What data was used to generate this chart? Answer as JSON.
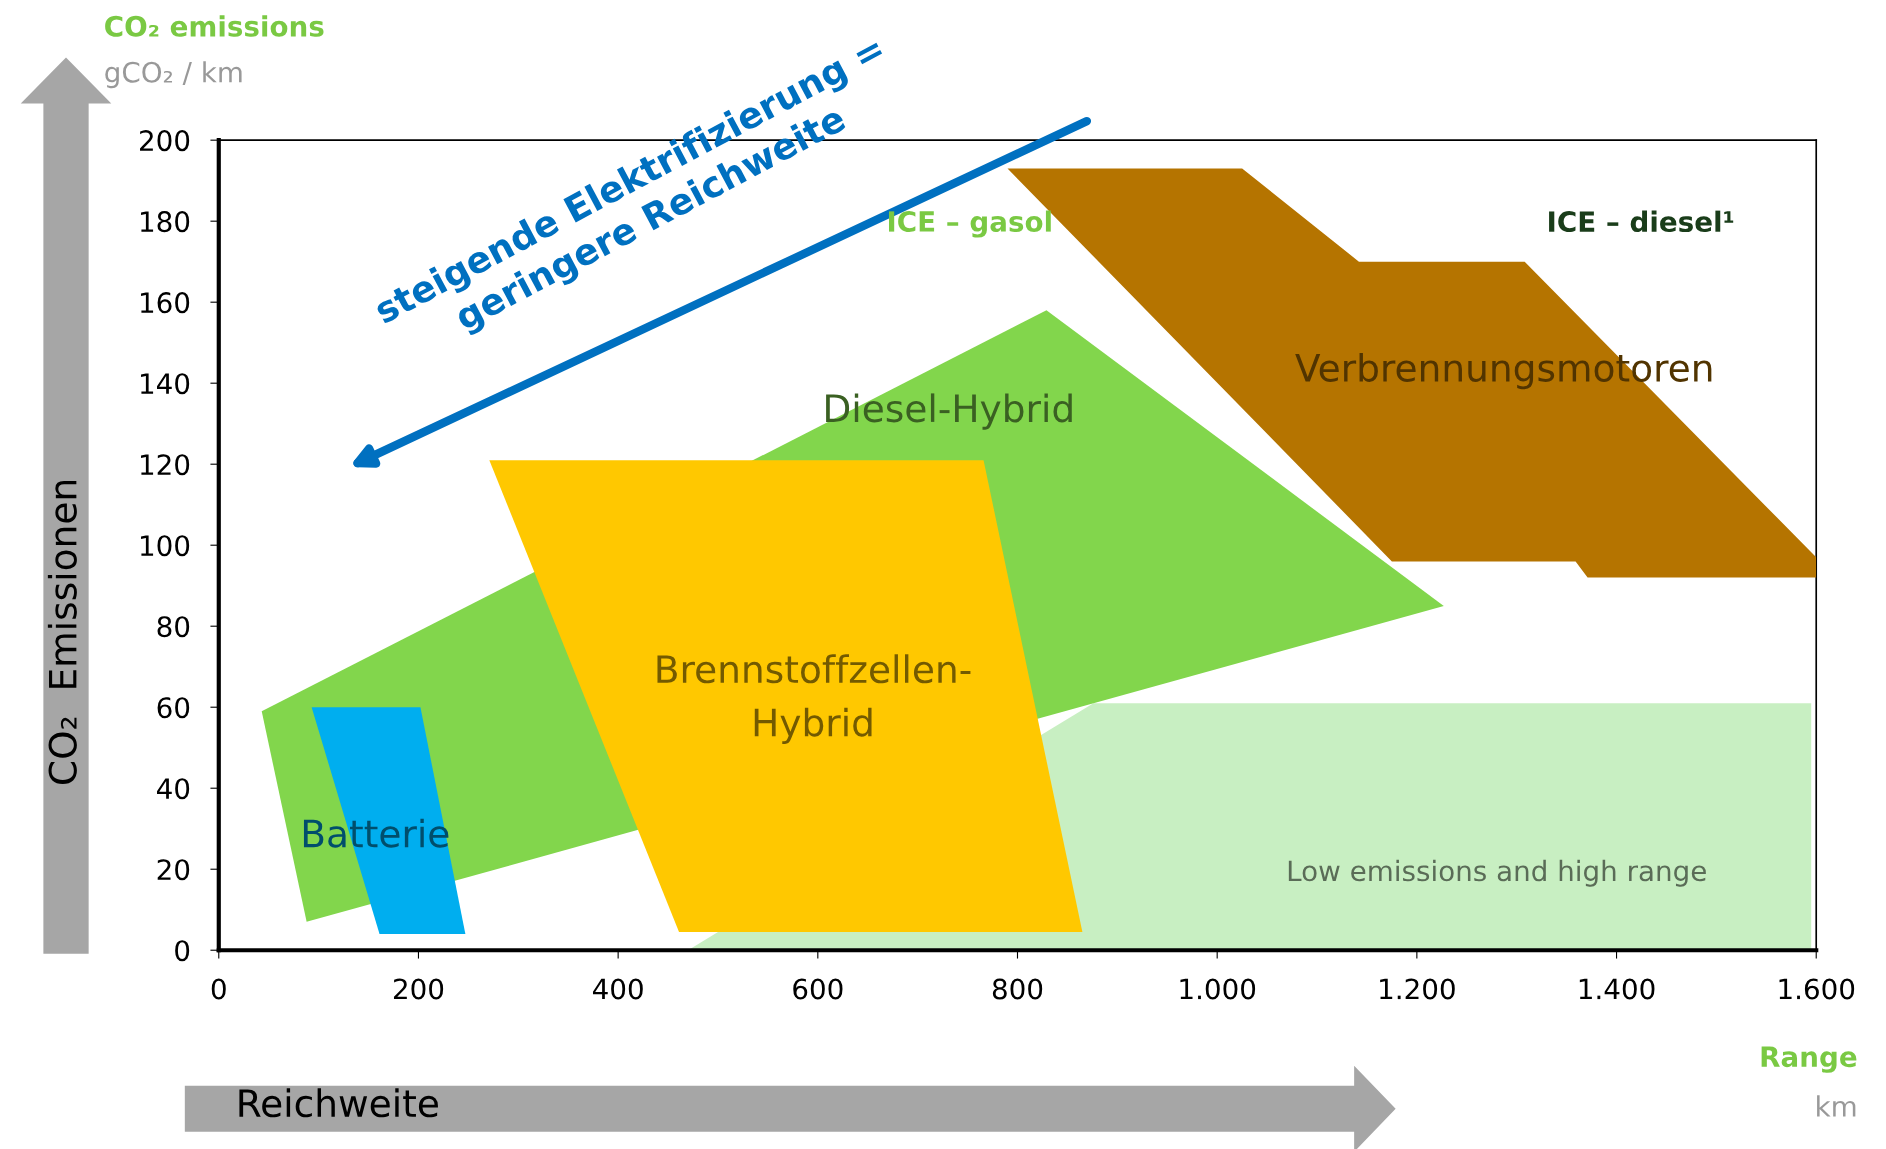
{
  "chart_data": {
    "type": "area",
    "xlabel": "Range",
    "ylabel": "CO₂ emissions",
    "xlim": [
      0,
      1600
    ],
    "ylim": [
      0,
      200
    ],
    "xticks": [
      0,
      200,
      400,
      600,
      800,
      {
        "value": 1000,
        "label": "1.000"
      },
      {
        "value": 1200,
        "label": "1.200"
      },
      {
        "value": 1400,
        "label": "1.400"
      },
      {
        "value": 1600,
        "label": "1.600"
      }
    ],
    "yticks": [
      0,
      20,
      40,
      60,
      80,
      100,
      120,
      140,
      160,
      180,
      200
    ],
    "grid": false,
    "legend": false,
    "series": [
      {
        "name": "Low emissions and high range",
        "color": "#c8efc2",
        "x": [
          876,
          1595,
          1595,
          470
        ],
        "values": [
          61,
          61,
          0,
          0
        ]
      },
      {
        "name": "Verbrennungsmotoren",
        "color": "#b57400",
        "x": [
          790,
          1025,
          1142,
          1308,
          1600,
          1600,
          1371,
          1359,
          1175
        ],
        "values": [
          193,
          193,
          170,
          170,
          97,
          92,
          92,
          96,
          96
        ]
      },
      {
        "name": "Diesel-Hybrid",
        "color": "#82d64c",
        "x": [
          43,
          829,
          1227,
          88
        ],
        "values": [
          59,
          158,
          85,
          7
        ]
      },
      {
        "name": "Brennstoffzellen-\nHybrid",
        "color": "#ffc800",
        "x": [
          271,
          766,
          865,
          461
        ],
        "values": [
          121,
          121,
          4.5,
          4.5
        ]
      },
      {
        "name": "Batterie",
        "color": "#00aeef",
        "x": [
          93,
          202,
          247,
          161
        ],
        "values": [
          60,
          60,
          4,
          4
        ]
      }
    ],
    "annotations": [
      "ICE – gasol",
      "ICE – diesel¹",
      "gCO₂ / km",
      "km",
      "CO₂  Emissionen",
      "Reichweite",
      "steigende Elektrifizierung =\ngeringere Reichweite"
    ]
  }
}
